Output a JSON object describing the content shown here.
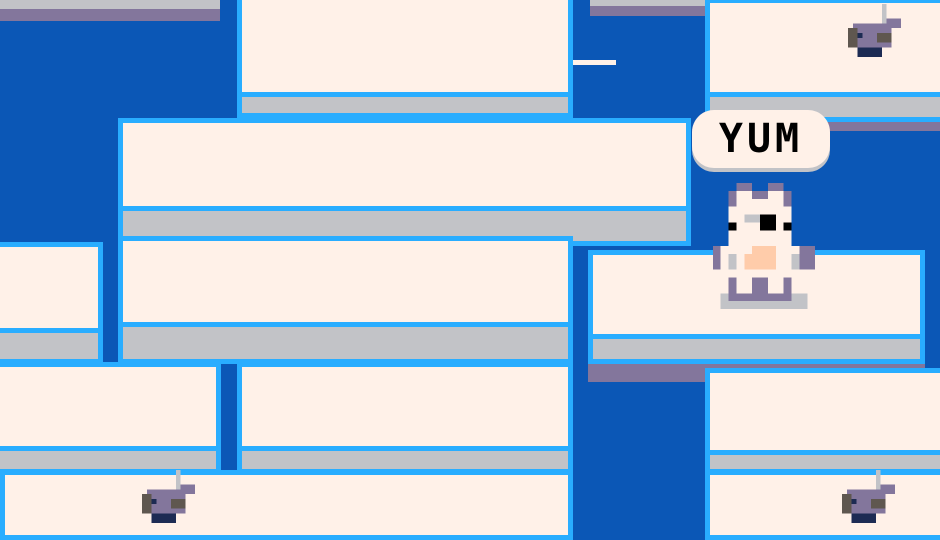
{
  "speech_bubble": {
    "text": "YUM"
  },
  "colors": {
    "water": "#0b57b6",
    "ice": "#fff1e8",
    "ice_border": "#29adff",
    "ice_shadow": "#c2c3c7",
    "deep_shadow": "#83769c"
  },
  "sprites": {
    "player": "cat-icon",
    "collectible": "fish-icon"
  }
}
